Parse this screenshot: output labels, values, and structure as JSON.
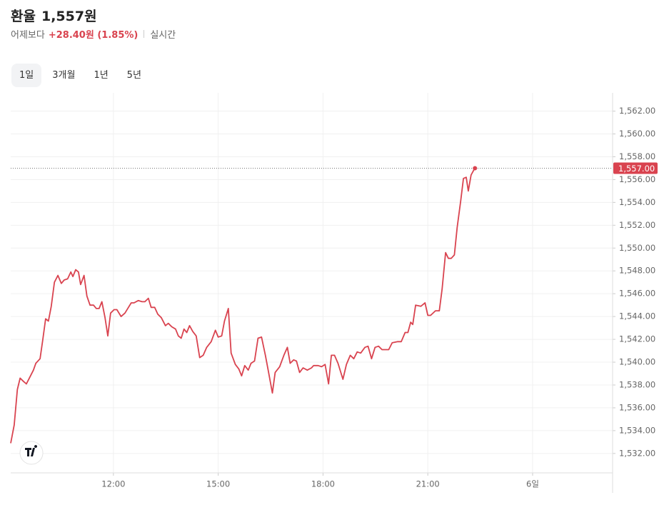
{
  "header": {
    "title": "환율",
    "price": "1,557원",
    "compare_label": "어제보다",
    "change": "+28.40원 (1.85%)",
    "status": "실시간"
  },
  "tabs": [
    "1일",
    "3개월",
    "1년",
    "5년"
  ],
  "active_tab": 0,
  "chart_data": {
    "type": "line",
    "color": "#d9434f",
    "grid": true,
    "xlim": [
      9.06,
      26.29
    ],
    "ylim": [
      1530.3,
      1563.6
    ],
    "xticks": [
      {
        "value": 12,
        "label": "12:00"
      },
      {
        "value": 15,
        "label": "15:00"
      },
      {
        "value": 18,
        "label": "18:00"
      },
      {
        "value": 21,
        "label": "21:00"
      },
      {
        "value": 24,
        "label": "6일"
      }
    ],
    "yticks": [
      {
        "value": 1532,
        "label": "1,532.00"
      },
      {
        "value": 1534,
        "label": "1,534.00"
      },
      {
        "value": 1536,
        "label": "1,536.00"
      },
      {
        "value": 1538,
        "label": "1,538.00"
      },
      {
        "value": 1540,
        "label": "1,540.00"
      },
      {
        "value": 1542,
        "label": "1,542.00"
      },
      {
        "value": 1544,
        "label": "1,544.00"
      },
      {
        "value": 1546,
        "label": "1,546.00"
      },
      {
        "value": 1548,
        "label": "1,548.00"
      },
      {
        "value": 1550,
        "label": "1,550.00"
      },
      {
        "value": 1552,
        "label": "1,552.00"
      },
      {
        "value": 1554,
        "label": "1,554.00"
      },
      {
        "value": 1556,
        "label": "1,556.00"
      },
      {
        "value": 1558,
        "label": "1,558.00"
      },
      {
        "value": 1560,
        "label": "1,560.00"
      },
      {
        "value": 1562,
        "label": "1,562.00"
      }
    ],
    "last_price": {
      "value": 1557,
      "label": "1,557.00"
    },
    "x": [
      9.06,
      9.16,
      9.25,
      9.33,
      9.43,
      9.51,
      9.61,
      9.71,
      9.78,
      9.9,
      9.98,
      10.06,
      10.14,
      10.22,
      10.31,
      10.41,
      10.51,
      10.59,
      10.69,
      10.78,
      10.84,
      10.92,
      11.0,
      11.06,
      11.16,
      11.24,
      11.33,
      11.43,
      11.51,
      11.59,
      11.67,
      11.76,
      11.84,
      11.92,
      12.02,
      12.1,
      12.22,
      12.33,
      12.43,
      12.51,
      12.59,
      12.71,
      12.82,
      12.9,
      13.0,
      13.08,
      13.18,
      13.27,
      13.37,
      13.49,
      13.57,
      13.67,
      13.78,
      13.86,
      13.94,
      14.02,
      14.1,
      14.18,
      14.27,
      14.37,
      14.47,
      14.57,
      14.67,
      14.8,
      14.92,
      15.0,
      15.1,
      15.18,
      15.29,
      15.37,
      15.49,
      15.59,
      15.67,
      15.76,
      15.86,
      15.94,
      16.04,
      16.14,
      16.24,
      16.35,
      16.43,
      16.55,
      16.63,
      16.76,
      16.88,
      16.98,
      17.06,
      17.16,
      17.24,
      17.33,
      17.43,
      17.55,
      17.67,
      17.73,
      17.86,
      17.96,
      18.06,
      18.16,
      18.24,
      18.33,
      18.43,
      18.57,
      18.67,
      18.78,
      18.88,
      18.98,
      19.08,
      19.2,
      19.29,
      19.39,
      19.49,
      19.59,
      19.69,
      19.88,
      19.98,
      20.14,
      20.24,
      20.35,
      20.43,
      20.51,
      20.57,
      20.65,
      20.8,
      20.92,
      21.0,
      21.08,
      21.22,
      21.33,
      21.41,
      21.51,
      21.59,
      21.67,
      21.76,
      21.84,
      21.94,
      22.02,
      22.1,
      22.16,
      22.24,
      22.31,
      22.35
    ],
    "values": [
      1532.9,
      1534.5,
      1537.6,
      1538.6,
      1538.3,
      1538.1,
      1538.7,
      1539.3,
      1539.9,
      1540.3,
      1542.0,
      1543.8,
      1543.6,
      1544.9,
      1547.0,
      1547.6,
      1546.9,
      1547.2,
      1547.3,
      1547.9,
      1547.5,
      1548.1,
      1547.9,
      1546.8,
      1547.6,
      1545.8,
      1545.0,
      1545.0,
      1544.7,
      1544.7,
      1545.3,
      1543.9,
      1542.3,
      1544.3,
      1544.6,
      1544.6,
      1544.0,
      1544.3,
      1544.8,
      1545.2,
      1545.2,
      1545.4,
      1545.3,
      1545.3,
      1545.6,
      1544.8,
      1544.8,
      1544.2,
      1543.9,
      1543.2,
      1543.4,
      1543.1,
      1542.9,
      1542.3,
      1542.1,
      1542.9,
      1542.6,
      1543.2,
      1542.7,
      1542.3,
      1540.4,
      1540.6,
      1541.3,
      1541.8,
      1542.8,
      1542.2,
      1542.3,
      1543.6,
      1544.7,
      1540.8,
      1539.8,
      1539.4,
      1538.8,
      1539.7,
      1539.3,
      1539.9,
      1540.1,
      1542.1,
      1542.2,
      1540.6,
      1539.3,
      1537.3,
      1539.1,
      1539.6,
      1540.6,
      1541.3,
      1539.9,
      1540.2,
      1540.1,
      1539.1,
      1539.5,
      1539.3,
      1539.5,
      1539.7,
      1539.7,
      1539.6,
      1539.8,
      1538.1,
      1540.6,
      1540.6,
      1539.9,
      1538.5,
      1539.8,
      1540.6,
      1540.3,
      1540.9,
      1540.8,
      1541.3,
      1541.4,
      1540.3,
      1541.3,
      1541.4,
      1541.1,
      1541.1,
      1541.7,
      1541.8,
      1541.8,
      1542.6,
      1542.6,
      1543.5,
      1543.3,
      1545.0,
      1544.9,
      1545.2,
      1544.1,
      1544.1,
      1544.5,
      1544.5,
      1546.4,
      1549.6,
      1549.1,
      1549.1,
      1549.4,
      1551.8,
      1554.1,
      1556.1,
      1556.2,
      1555.0,
      1556.4,
      1556.8,
      1557.0
    ]
  }
}
